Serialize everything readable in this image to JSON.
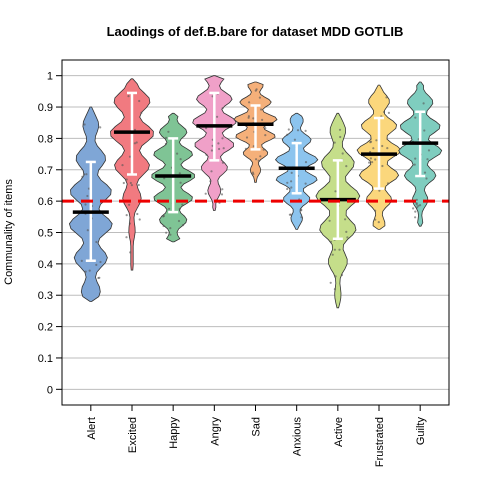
{
  "chart_data": {
    "type": "violin",
    "title": "Laodings of def.B.bare for dataset MDD GOTLIB",
    "xlabel": "",
    "ylabel": "Communality of items",
    "ylim": [
      -0.05,
      1.05
    ],
    "yticks": [
      "0",
      "0.1",
      "0.2",
      "0.3",
      "0.4",
      "0.5",
      "0.6",
      "0.7",
      "0.8",
      "0.9",
      "1"
    ],
    "reference_line": 0.6,
    "grid": true,
    "categories": [
      "Alert",
      "Excited",
      "Happy",
      "Angry",
      "Sad",
      "Anxious",
      "Active",
      "Frustrated",
      "Guilty"
    ],
    "colors": [
      "#7fa6d6",
      "#f17a80",
      "#7fc495",
      "#f0a0c8",
      "#f5b07a",
      "#8cc4ee",
      "#c5de8a",
      "#fbd77c",
      "#7fcdbf"
    ],
    "series": [
      {
        "category": "Alert",
        "min": 0.28,
        "max": 0.9,
        "median": 0.565,
        "sd_low": 0.41,
        "sd_high": 0.725
      },
      {
        "category": "Excited",
        "min": 0.38,
        "max": 0.99,
        "median": 0.82,
        "sd_low": 0.685,
        "sd_high": 0.945
      },
      {
        "category": "Happy",
        "min": 0.47,
        "max": 0.88,
        "median": 0.68,
        "sd_low": 0.565,
        "sd_high": 0.8
      },
      {
        "category": "Angry",
        "min": 0.57,
        "max": 1.0,
        "median": 0.84,
        "sd_low": 0.73,
        "sd_high": 0.945
      },
      {
        "category": "Sad",
        "min": 0.66,
        "max": 0.98,
        "median": 0.845,
        "sd_low": 0.765,
        "sd_high": 0.905
      },
      {
        "category": "Anxious",
        "min": 0.51,
        "max": 0.88,
        "median": 0.705,
        "sd_low": 0.625,
        "sd_high": 0.785
      },
      {
        "category": "Active",
        "min": 0.26,
        "max": 0.88,
        "median": 0.605,
        "sd_low": 0.48,
        "sd_high": 0.73
      },
      {
        "category": "Frustrated",
        "min": 0.51,
        "max": 0.97,
        "median": 0.75,
        "sd_low": 0.64,
        "sd_high": 0.865
      },
      {
        "category": "Guilty",
        "min": 0.52,
        "max": 0.98,
        "median": 0.785,
        "sd_low": 0.68,
        "sd_high": 0.885
      }
    ]
  }
}
